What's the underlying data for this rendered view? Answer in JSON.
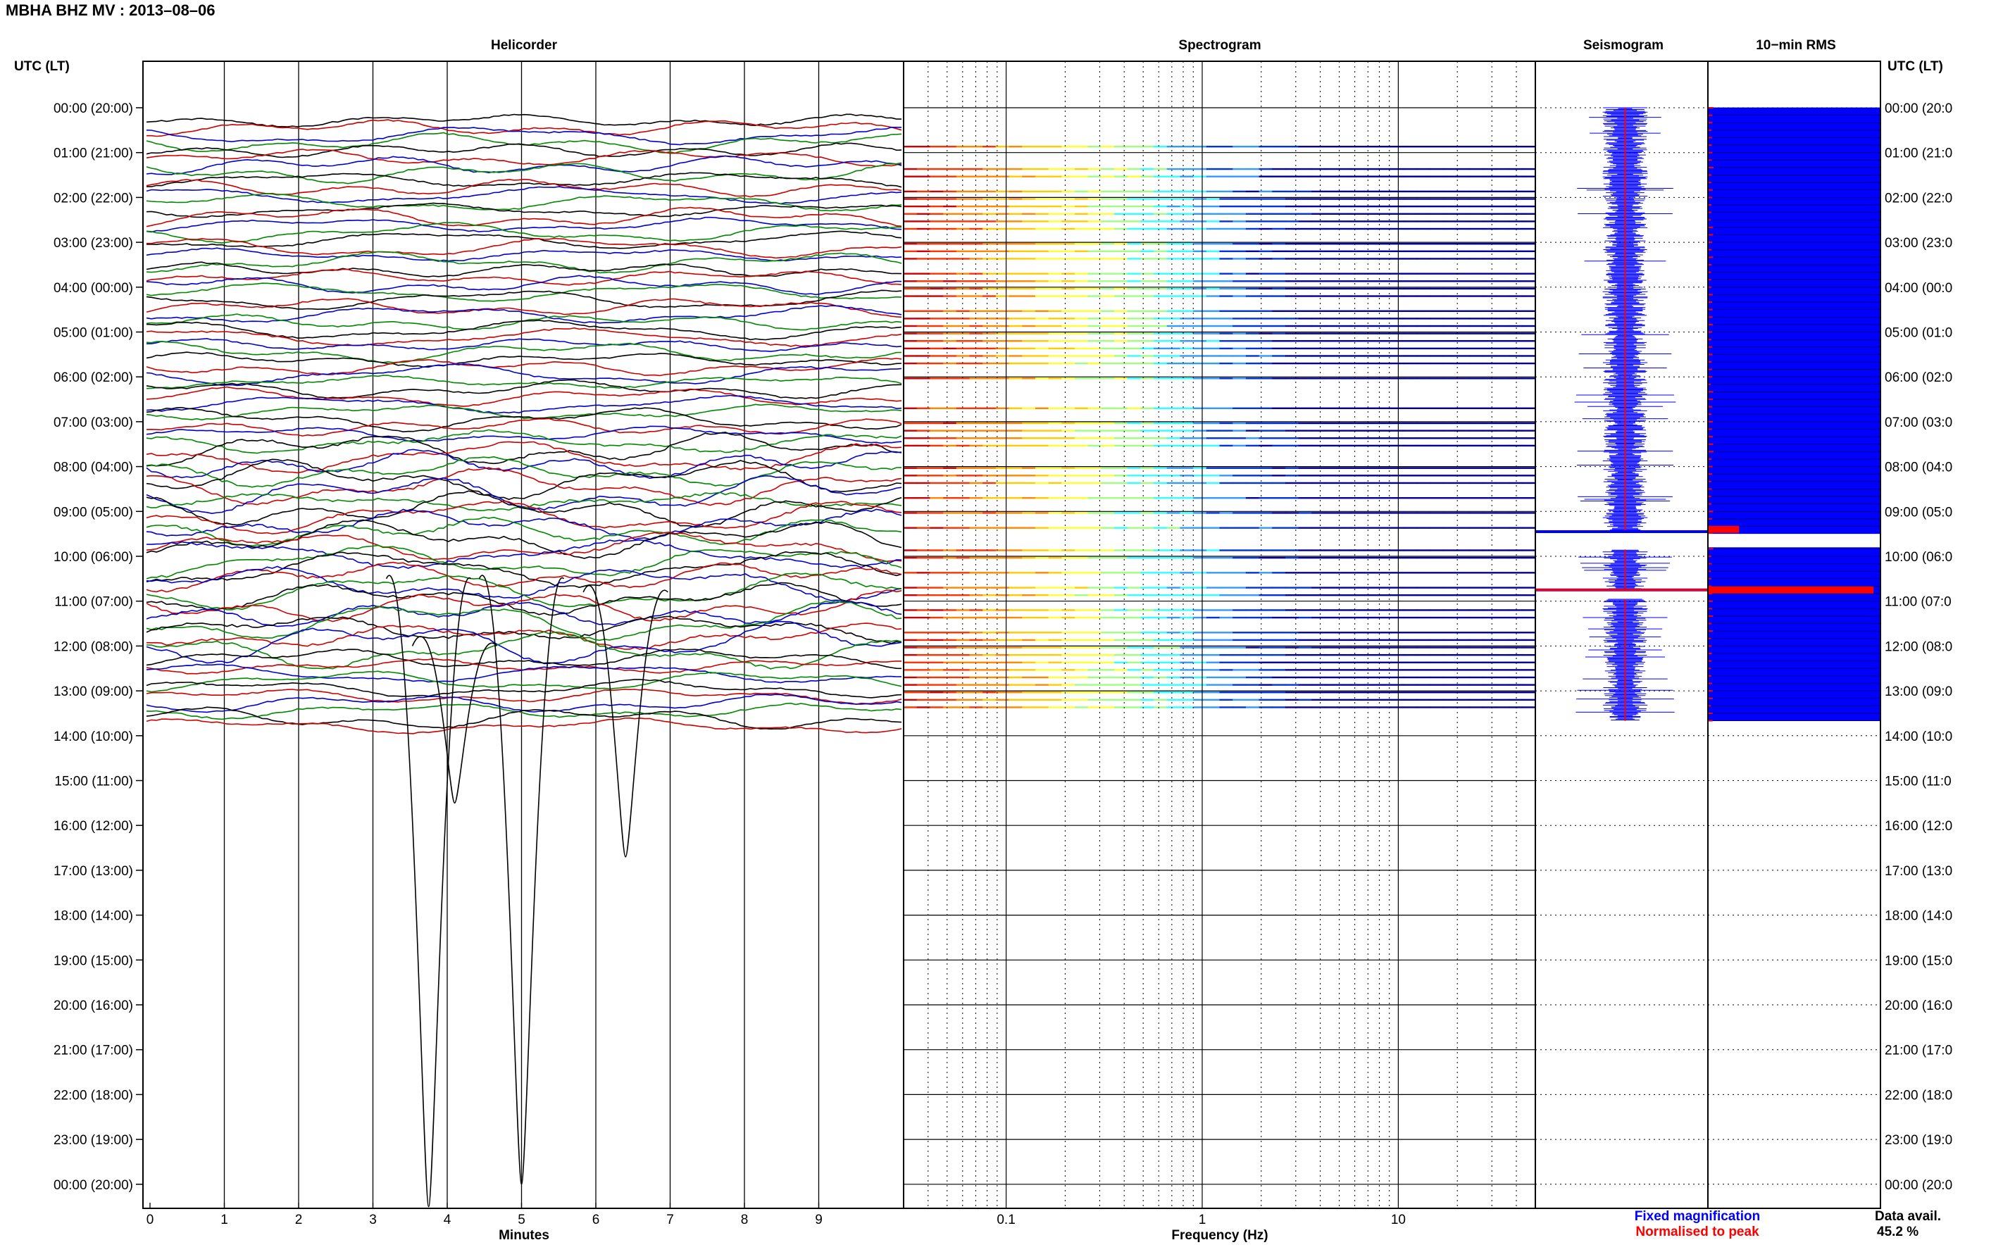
{
  "header": {
    "station_title": "MBHA BHZ MV : 2013–08–06"
  },
  "colors": {
    "trace_cycle": [
      "#000000",
      "#cc0000",
      "#0000cc",
      "#008800"
    ],
    "fixed": "#0000ff",
    "normalised": "#ff0000",
    "rms_fill": "#0000ff"
  },
  "panels": {
    "helicorder_title": "Helicorder",
    "spectrogram_title": "Spectrogram",
    "seismogram_title": "Seismogram",
    "rms_title": "10−min RMS"
  },
  "axis": {
    "y_left_title": "UTC (LT)",
    "y_right_title": "UTC (LT)",
    "hour_labels": [
      "00:00 (20:00)",
      "01:00 (21:00)",
      "02:00 (22:00)",
      "03:00 (23:00)",
      "04:00 (00:00)",
      "05:00 (01:00)",
      "06:00 (02:00)",
      "07:00 (03:00)",
      "08:00 (04:00)",
      "09:00 (05:00)",
      "10:00 (06:00)",
      "11:00 (07:00)",
      "12:00 (08:00)",
      "13:00 (09:00)",
      "14:00 (10:00)",
      "15:00 (11:00)",
      "16:00 (12:00)",
      "17:00 (13:00)",
      "18:00 (14:00)",
      "19:00 (15:00)",
      "20:00 (16:00)",
      "21:00 (17:00)",
      "22:00 (18:00)",
      "23:00 (19:00)",
      "00:00 (20:00)"
    ],
    "right_labels": [
      "00:00 (20:0",
      "01:00 (21:0",
      "02:00 (22:0",
      "03:00 (23:0",
      "04:00 (00:0",
      "05:00 (01:0",
      "06:00 (02:0",
      "07:00 (03:0",
      "08:00 (04:0",
      "09:00 (05:0",
      "10:00 (06:0",
      "11:00 (07:0",
      "12:00 (08:0",
      "13:00 (09:0",
      "14:00 (10:0",
      "15:00 (11:0",
      "16:00 (12:0",
      "17:00 (13:0",
      "18:00 (14:0",
      "19:00 (15:0",
      "20:00 (16:0",
      "21:00 (17:0",
      "22:00 (18:0",
      "23:00 (19:0",
      "00:00 (20:0"
    ],
    "minutes_label": "Minutes",
    "minute_ticks": [
      "0",
      "1",
      "2",
      "3",
      "4",
      "5",
      "6",
      "7",
      "8",
      "9"
    ],
    "frequency_label": "Frequency (Hz)",
    "freq_ticks": [
      "0.1",
      "1",
      "10"
    ]
  },
  "legend": {
    "fixed_magnification": "Fixed magnification",
    "normalised_to_peak": "Normalised to peak"
  },
  "data_availability": {
    "label": "Data avail.",
    "value": "45.2 %"
  },
  "chart_data": [
    {
      "type": "line",
      "title": "Helicorder",
      "xlabel": "Minutes",
      "ylabel": "UTC (LT)",
      "x_range": [
        0,
        10
      ],
      "y_range_hours": [
        0,
        24
      ],
      "rows_per_hour": 6,
      "data_hours": [
        0,
        13.67
      ],
      "large_swings": [
        {
          "hour": 10.5,
          "minute": 3.75,
          "reaches_hour": 24.5
        },
        {
          "hour": 10.5,
          "minute": 5.0,
          "reaches_hour": 24.0
        },
        {
          "hour": 10.8,
          "minute": 6.4,
          "reaches_hour": 16.7
        },
        {
          "hour": 12.0,
          "minute": 4.1,
          "reaches_hour": 15.5
        }
      ]
    },
    {
      "type": "heatmap",
      "title": "Spectrogram",
      "xlabel": "Frequency (Hz)",
      "x_scale": "log",
      "x_range": [
        0.03,
        50
      ],
      "y_range_hours": [
        0,
        24
      ],
      "data_hours": [
        0.7,
        13.67
      ],
      "gap_hours": [
        9.5,
        9.8
      ]
    },
    {
      "type": "line",
      "title": "Seismogram",
      "series": [
        {
          "name": "Fixed magnification"
        },
        {
          "name": "Normalised to peak"
        }
      ],
      "data_hours": [
        0,
        13.67
      ],
      "gaps": [
        [
          9.45,
          9.85
        ],
        [
          10.75,
          10.95
        ]
      ]
    },
    {
      "type": "bar",
      "title": "10−min RMS",
      "y_range_hours": [
        0,
        24
      ],
      "data_hours": [
        0,
        13.67
      ],
      "gap_hours": [
        9.5,
        9.8
      ],
      "peaks": [
        {
          "hour": 9.4,
          "relative": 0.18
        },
        {
          "hour": 10.75,
          "relative": 0.96
        }
      ]
    }
  ]
}
